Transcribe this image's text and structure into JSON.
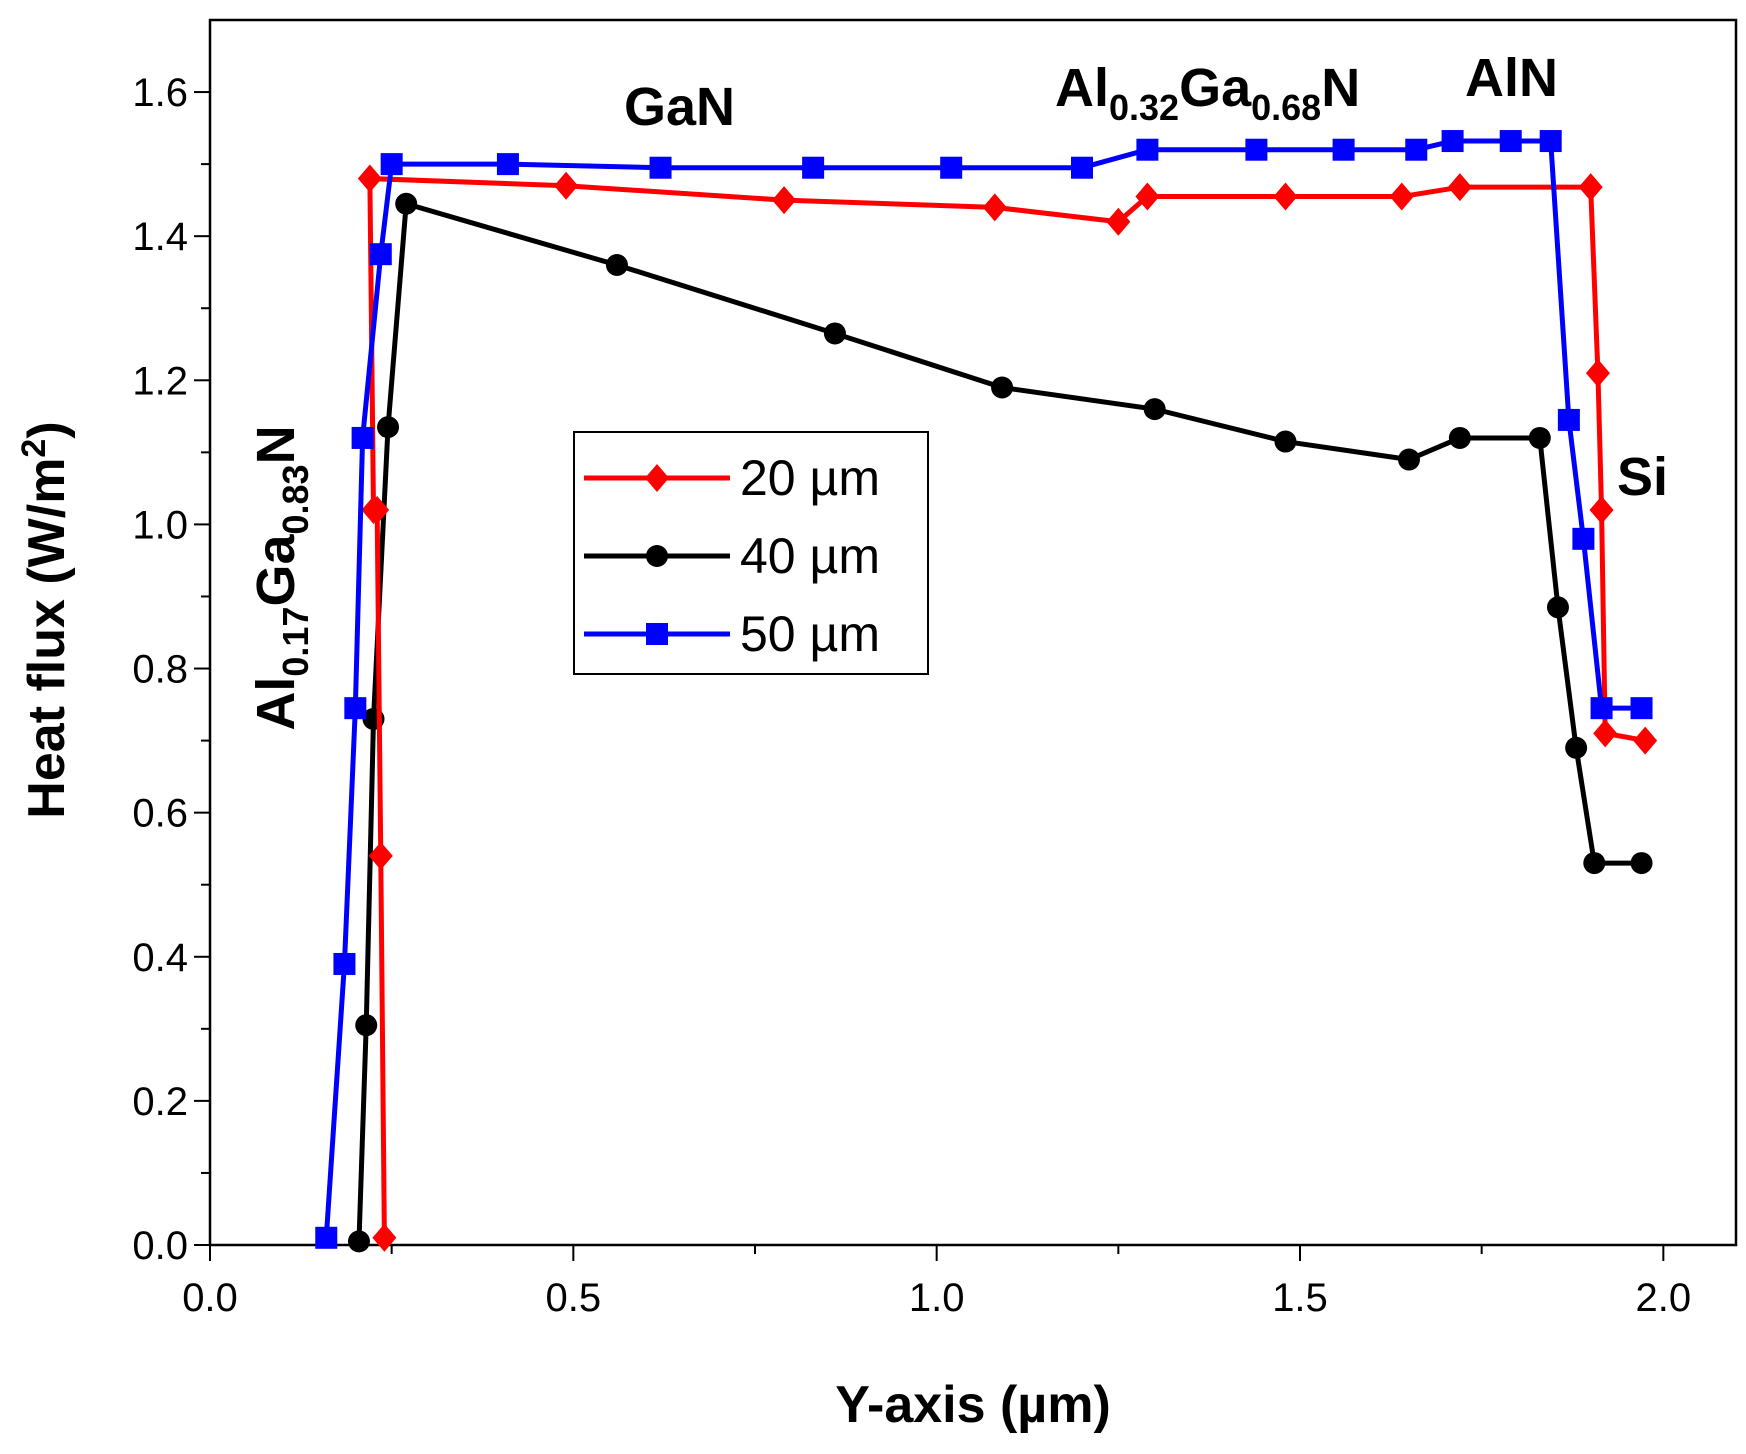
{
  "chart_data": {
    "type": "line",
    "title": "",
    "xlabel": "Y-axis (µm)",
    "ylabel": {
      "prefix": "Heat flux (W/m",
      "sup": "2",
      "suffix": ")"
    },
    "xlim": [
      0,
      2.1
    ],
    "ylim": [
      0,
      1.7
    ],
    "xticks": [
      0,
      0.5,
      1.0,
      1.5,
      2.0
    ],
    "xtick_labels": [
      "0.0",
      "0.5",
      "1.0",
      "1.5",
      "2.0"
    ],
    "xminor": [
      0.25,
      0.75,
      1.25,
      1.75
    ],
    "yticks": [
      0,
      0.2,
      0.4,
      0.6,
      0.8,
      1.0,
      1.2,
      1.4,
      1.6
    ],
    "ytick_labels": [
      "0.0",
      "0.2",
      "0.4",
      "0.6",
      "0.8",
      "1.0",
      "1.2",
      "1.4",
      "1.6"
    ],
    "yminor": [
      0.1,
      0.3,
      0.5,
      0.7,
      0.9,
      1.1,
      1.3,
      1.5
    ],
    "series": [
      {
        "name": "20 µm",
        "color": "#ff0000",
        "marker": "diamond",
        "x": [
          0.24,
          0.235,
          0.23,
          0.225,
          0.22,
          0.49,
          0.79,
          1.08,
          1.25,
          1.29,
          1.48,
          1.64,
          1.72,
          1.9,
          1.91,
          1.915,
          1.92,
          1.975
        ],
        "y": [
          0.01,
          0.54,
          1.02,
          1.02,
          1.48,
          1.47,
          1.45,
          1.44,
          1.42,
          1.455,
          1.455,
          1.455,
          1.468,
          1.468,
          1.21,
          1.02,
          0.71,
          0.7
        ]
      },
      {
        "name": "40 µm",
        "color": "#000000",
        "marker": "circle",
        "x": [
          0.205,
          0.215,
          0.225,
          0.245,
          0.27,
          0.56,
          0.86,
          1.09,
          1.3,
          1.48,
          1.65,
          1.72,
          1.83,
          1.855,
          1.88,
          1.905,
          1.97
        ],
        "y": [
          0.005,
          0.305,
          0.73,
          1.135,
          1.445,
          1.36,
          1.265,
          1.19,
          1.16,
          1.115,
          1.09,
          1.12,
          1.12,
          0.885,
          0.69,
          0.53,
          0.53
        ]
      },
      {
        "name": "50 µm",
        "color": "#0000ff",
        "marker": "square",
        "x": [
          0.16,
          0.185,
          0.2,
          0.21,
          0.235,
          0.25,
          0.41,
          0.62,
          0.83,
          1.02,
          1.2,
          1.29,
          1.44,
          1.56,
          1.66,
          1.71,
          1.79,
          1.845,
          1.87,
          1.89,
          1.915,
          1.97
        ],
        "y": [
          0.01,
          0.39,
          0.745,
          1.12,
          1.375,
          1.5,
          1.5,
          1.495,
          1.495,
          1.495,
          1.495,
          1.52,
          1.52,
          1.52,
          1.52,
          1.532,
          1.532,
          1.532,
          1.145,
          0.98,
          0.745,
          0.745
        ]
      }
    ],
    "annotations": [
      {
        "id": "gan",
        "parts": [
          {
            "t": "GaN",
            "sub": false
          }
        ]
      },
      {
        "id": "algan32",
        "parts": [
          {
            "t": "Al",
            "sub": false
          },
          {
            "t": "0.32",
            "sub": true
          },
          {
            "t": "Ga",
            "sub": false
          },
          {
            "t": "0.68",
            "sub": true
          },
          {
            "t": "N",
            "sub": false
          }
        ]
      },
      {
        "id": "aln",
        "parts": [
          {
            "t": "AlN",
            "sub": false
          }
        ]
      },
      {
        "id": "si",
        "parts": [
          {
            "t": "Si",
            "sub": false
          }
        ]
      },
      {
        "id": "algan17",
        "parts": [
          {
            "t": "Al",
            "sub": false
          },
          {
            "t": "0.17",
            "sub": true
          },
          {
            "t": "Ga",
            "sub": false
          },
          {
            "t": "0.83",
            "sub": true
          },
          {
            "t": "N",
            "sub": false
          }
        ]
      }
    ],
    "legend": {
      "position": "center-left",
      "entries": [
        "20 µm",
        "40 µm",
        "50 µm"
      ]
    }
  }
}
